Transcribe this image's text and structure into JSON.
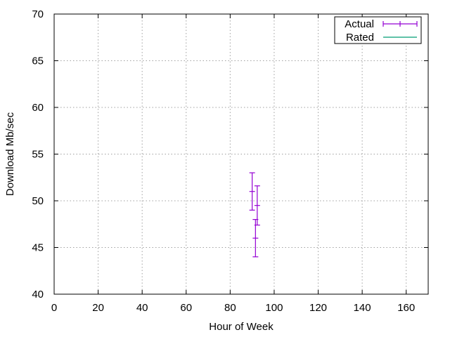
{
  "chart_data": {
    "type": "scatter",
    "title": "",
    "xlabel": "Hour of Week",
    "ylabel": "Download Mb/sec",
    "xlim": [
      0,
      170
    ],
    "ylim": [
      40,
      70
    ],
    "x_ticks": [
      0,
      20,
      40,
      60,
      80,
      100,
      120,
      140,
      160
    ],
    "y_ticks": [
      40,
      45,
      50,
      55,
      60,
      65,
      70
    ],
    "grid": true,
    "legend_position": "top-right",
    "series": [
      {
        "name": "Actual",
        "style": "errorbars",
        "color": "#9400d3",
        "points": [
          {
            "x": 90.0,
            "y": 51.0,
            "ylow": 49.0,
            "yhigh": 53.0
          },
          {
            "x": 91.5,
            "y": 46.0,
            "ylow": 44.0,
            "yhigh": 48.0
          },
          {
            "x": 92.3,
            "y": 49.5,
            "ylow": 47.4,
            "yhigh": 51.6
          }
        ]
      },
      {
        "name": "Rated",
        "style": "line",
        "color": "#009e73",
        "points": []
      }
    ]
  }
}
